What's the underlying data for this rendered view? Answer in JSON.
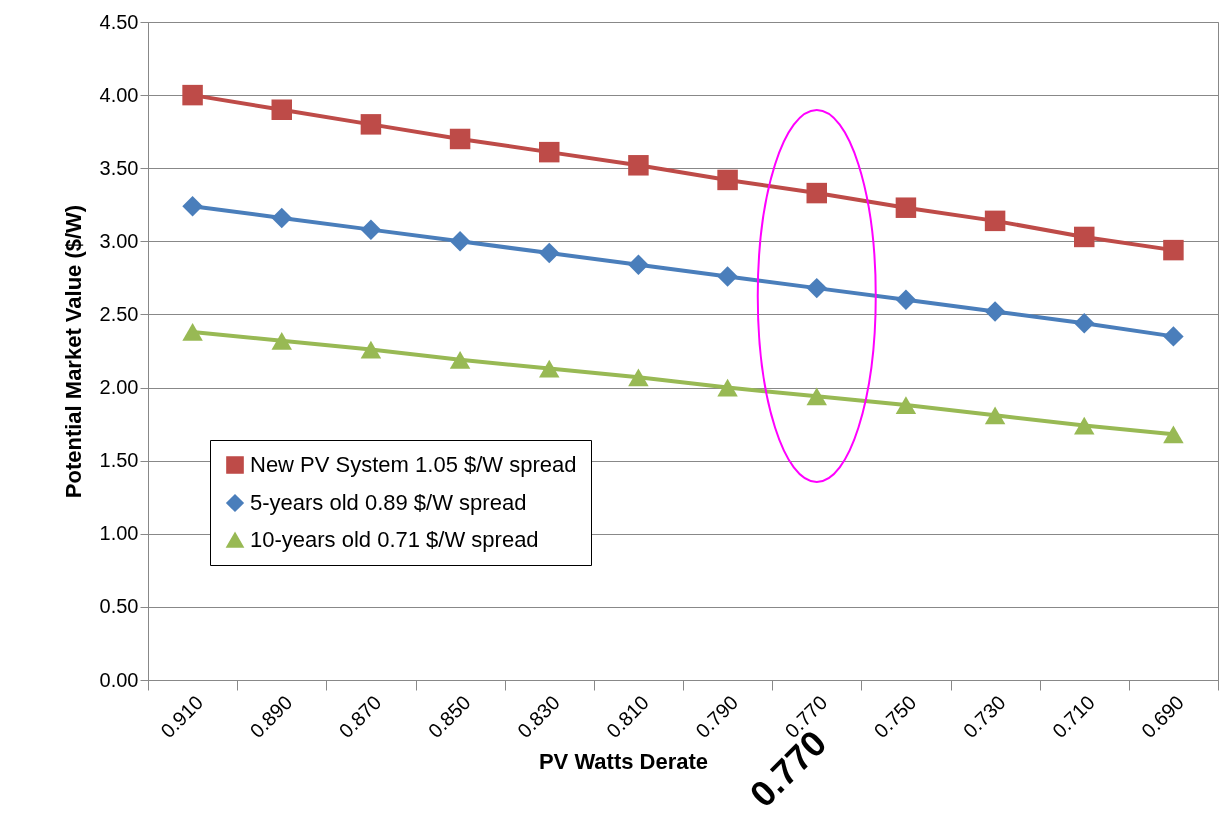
{
  "chart_data": {
    "type": "line",
    "xlabel": "PV Watts Derate",
    "ylabel": "Potential Market Value ($/W)",
    "categories": [
      "0.910",
      "0.890",
      "0.870",
      "0.850",
      "0.830",
      "0.810",
      "0.790",
      "0.770",
      "0.750",
      "0.730",
      "0.710",
      "0.690"
    ],
    "series": [
      {
        "name": "New PV System 1.05 $/W spread",
        "color": "#be4b48",
        "marker": "square",
        "values": [
          4.0,
          3.9,
          3.8,
          3.7,
          3.61,
          3.52,
          3.42,
          3.33,
          3.23,
          3.14,
          3.03,
          2.94
        ]
      },
      {
        "name": "5-years old 0.89 $/W spread",
        "color": "#4a7ebb",
        "marker": "diamond",
        "values": [
          3.24,
          3.16,
          3.08,
          3.0,
          2.92,
          2.84,
          2.76,
          2.68,
          2.6,
          2.52,
          2.44,
          2.35
        ]
      },
      {
        "name": "10-years old 0.71 $/W spread",
        "color": "#98b954",
        "marker": "triangle",
        "values": [
          2.38,
          2.32,
          2.26,
          2.19,
          2.13,
          2.07,
          2.0,
          1.94,
          1.88,
          1.81,
          1.74,
          1.68
        ]
      }
    ],
    "ylim": [
      0,
      4.5
    ],
    "yticks": [
      {
        "value": 0,
        "label": "0.00"
      },
      {
        "value": 0.5,
        "label": "0.50"
      },
      {
        "value": 1,
        "label": "1.00"
      },
      {
        "value": 1.5,
        "label": "1.50"
      },
      {
        "value": 2,
        "label": "2.00"
      },
      {
        "value": 2.5,
        "label": "2.50"
      },
      {
        "value": 3,
        "label": "3.00"
      },
      {
        "value": 3.5,
        "label": "3.50"
      },
      {
        "value": 4,
        "label": "4.00"
      },
      {
        "value": 4.5,
        "label": "4.50"
      }
    ],
    "grid": "y",
    "legend": "bottom left",
    "annotations": [
      "0.770"
    ]
  }
}
